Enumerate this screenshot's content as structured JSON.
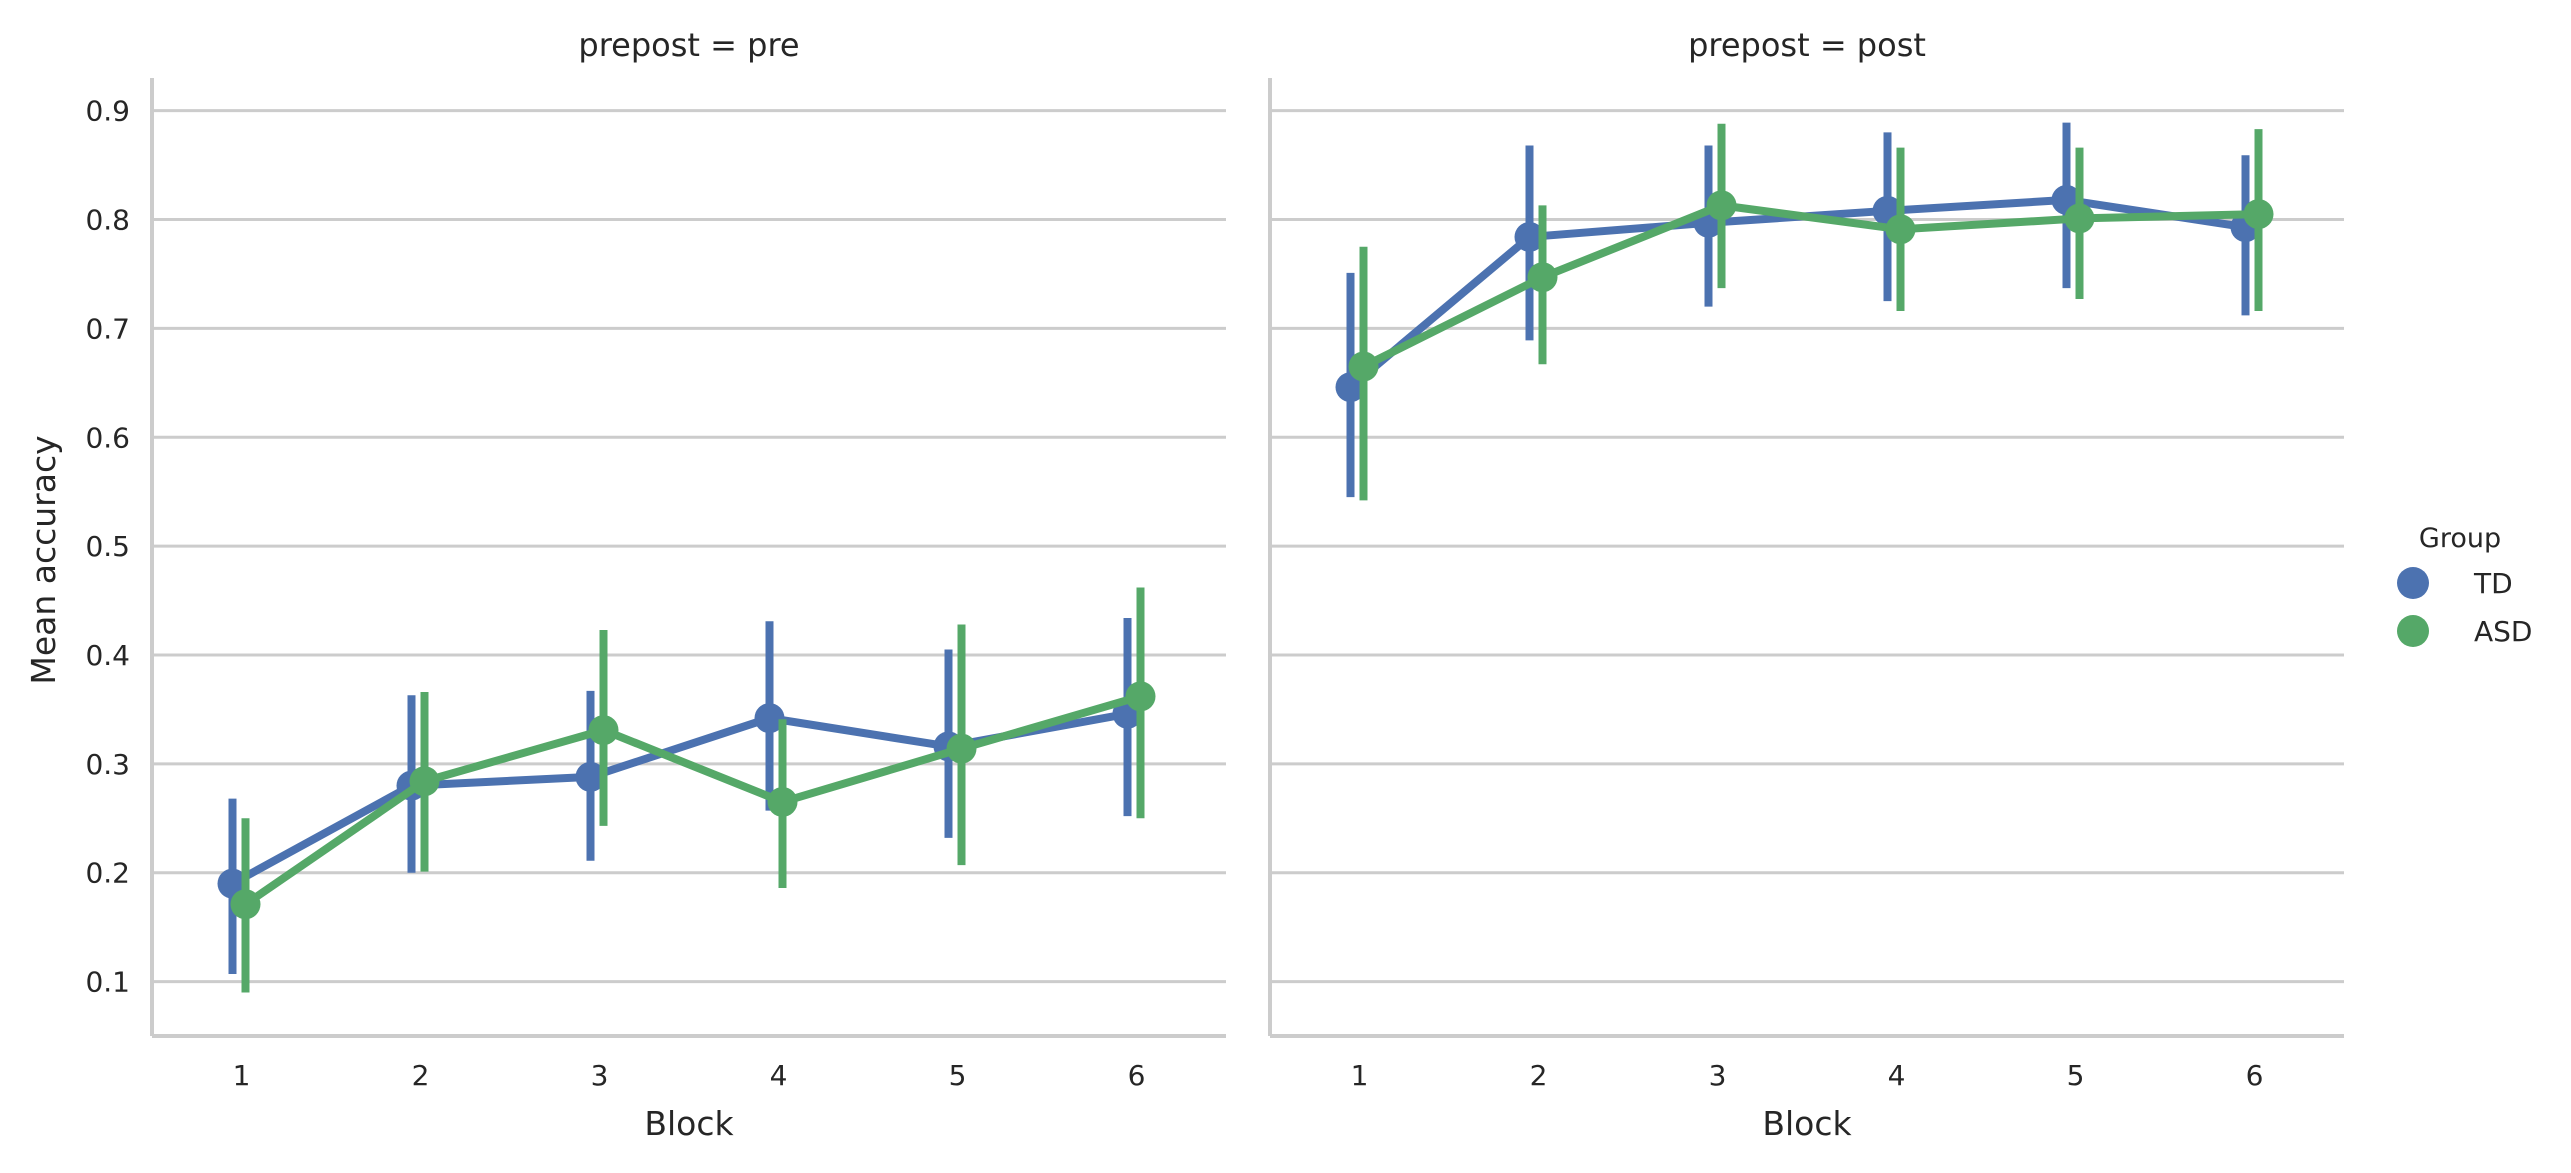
{
  "chart_data": {
    "type": "line",
    "ylabel": "Mean accuracy",
    "xlabel": "Block",
    "ylim": [
      0.05,
      0.93
    ],
    "yticks": [
      0.1,
      0.2,
      0.3,
      0.4,
      0.5,
      0.6,
      0.7,
      0.8,
      0.9
    ],
    "ytick_labels": [
      "0.1",
      "0.2",
      "0.3",
      "0.4",
      "0.5",
      "0.6",
      "0.7",
      "0.8",
      "0.9"
    ],
    "categories": [
      "1",
      "2",
      "3",
      "4",
      "5",
      "6"
    ],
    "grid": "horizontal",
    "legend": {
      "title": "Group",
      "placement": "right",
      "entries": [
        {
          "label": "TD",
          "color": "#4c72b0"
        },
        {
          "label": "ASD",
          "color": "#55a868"
        }
      ]
    },
    "panels": [
      {
        "title": "prepost = pre",
        "series": [
          {
            "name": "TD",
            "color": "#4c72b0",
            "values": [
              0.19,
              0.28,
              0.288,
              0.342,
              0.316,
              0.346
            ],
            "ci_low": [
              0.107,
              0.2,
              0.211,
              0.257,
              0.232,
              0.252
            ],
            "ci_high": [
              0.268,
              0.363,
              0.367,
              0.431,
              0.405,
              0.434
            ]
          },
          {
            "name": "ASD",
            "color": "#55a868",
            "values": [
              0.171,
              0.284,
              0.331,
              0.265,
              0.314,
              0.362
            ],
            "ci_low": [
              0.09,
              0.201,
              0.243,
              0.186,
              0.207,
              0.25
            ],
            "ci_high": [
              0.25,
              0.366,
              0.423,
              0.341,
              0.428,
              0.462
            ]
          }
        ]
      },
      {
        "title": "prepost = post",
        "series": [
          {
            "name": "TD",
            "color": "#4c72b0",
            "values": [
              0.646,
              0.784,
              0.797,
              0.808,
              0.818,
              0.793
            ],
            "ci_low": [
              0.545,
              0.689,
              0.72,
              0.725,
              0.737,
              0.712
            ],
            "ci_high": [
              0.751,
              0.868,
              0.868,
              0.88,
              0.889,
              0.859
            ]
          },
          {
            "name": "ASD",
            "color": "#55a868",
            "values": [
              0.665,
              0.747,
              0.813,
              0.791,
              0.801,
              0.805
            ],
            "ci_low": [
              0.542,
              0.667,
              0.737,
              0.716,
              0.727,
              0.716
            ],
            "ci_high": [
              0.775,
              0.813,
              0.888,
              0.866,
              0.866,
              0.883
            ]
          }
        ]
      }
    ]
  }
}
